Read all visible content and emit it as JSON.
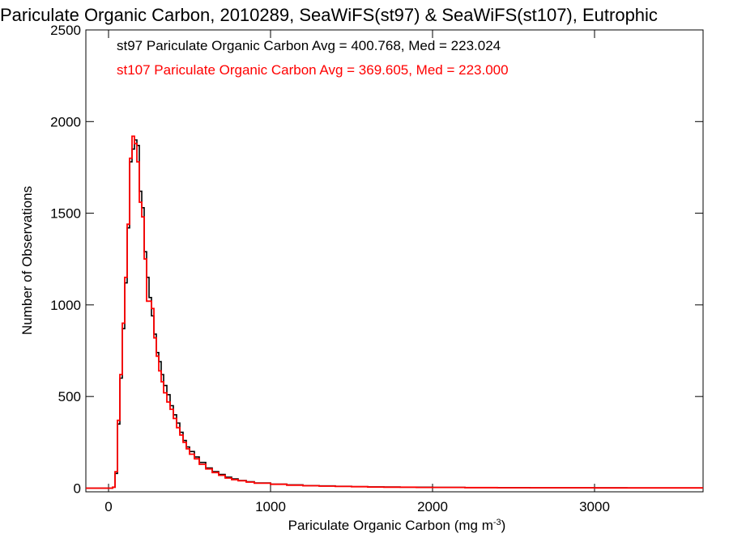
{
  "chart_data": {
    "type": "line",
    "title": "Pariculate Organic Carbon, 2010289, SeaWiFS(st97) & SeaWiFS(st107), Eutrophic",
    "xlabel": "Pariculate Organic Carbon (mg m",
    "xlabel_sup": "-3",
    "xlabel_end": ")",
    "ylabel": "Number of Observations",
    "xlim": [
      -140,
      3670
    ],
    "ylim": [
      -20,
      2500
    ],
    "x_ticks": [
      0,
      1000,
      2000,
      3000
    ],
    "y_ticks": [
      0,
      500,
      1000,
      1500,
      2000,
      2500
    ],
    "x_tick_labels": [
      "0",
      "1000",
      "2000",
      "3000"
    ],
    "y_tick_labels": [
      "0",
      "500",
      "1000",
      "1500",
      "2000",
      "2500"
    ],
    "annotations": [
      {
        "text": "st97 Pariculate Organic Carbon Avg = 400.768, Med = 223.024",
        "color": "#000000"
      },
      {
        "text": "st107 Pariculate Organic Carbon Avg = 369.605, Med = 223.000",
        "color": "#ff0000"
      }
    ],
    "series": [
      {
        "color": "#000000",
        "x": [
          -140,
          0,
          25,
          40,
          55,
          70,
          85,
          100,
          115,
          130,
          145,
          160,
          175,
          190,
          205,
          220,
          235,
          250,
          265,
          280,
          295,
          310,
          325,
          340,
          360,
          380,
          400,
          420,
          440,
          460,
          480,
          500,
          530,
          560,
          600,
          640,
          680,
          720,
          760,
          800,
          850,
          900,
          1000,
          1100,
          1200,
          1300,
          1400,
          1500,
          1600,
          1700,
          1800,
          1900,
          2000,
          2200,
          2400,
          2600,
          2800,
          3000,
          3200,
          3400,
          3670
        ],
        "y": [
          0,
          0,
          5,
          80,
          350,
          600,
          870,
          1120,
          1420,
          1780,
          1850,
          1900,
          1870,
          1620,
          1530,
          1290,
          1150,
          1040,
          940,
          840,
          740,
          690,
          620,
          560,
          510,
          450,
          400,
          355,
          305,
          260,
          225,
          200,
          170,
          140,
          110,
          90,
          75,
          60,
          50,
          42,
          35,
          28,
          22,
          18,
          14,
          12,
          10,
          8,
          7,
          6,
          5,
          5,
          4,
          3,
          3,
          2,
          2,
          2,
          1,
          1,
          1
        ]
      },
      {
        "color": "#ff0000",
        "x": [
          -140,
          0,
          25,
          40,
          55,
          70,
          85,
          100,
          115,
          130,
          145,
          160,
          175,
          190,
          205,
          220,
          235,
          250,
          265,
          280,
          295,
          310,
          325,
          340,
          360,
          380,
          400,
          420,
          440,
          460,
          480,
          500,
          530,
          560,
          600,
          640,
          680,
          720,
          760,
          800,
          850,
          900,
          1000,
          1100,
          1200,
          1300,
          1400,
          1500,
          1600,
          1700,
          1800,
          1900,
          2000,
          2200,
          2400,
          2600,
          2800,
          3000,
          3200,
          3400,
          3670
        ],
        "y": [
          0,
          0,
          5,
          90,
          370,
          620,
          900,
          1150,
          1440,
          1800,
          1920,
          1880,
          1780,
          1560,
          1480,
          1250,
          1020,
          1020,
          980,
          820,
          720,
          640,
          580,
          520,
          470,
          430,
          380,
          330,
          290,
          250,
          215,
          185,
          160,
          130,
          105,
          85,
          70,
          55,
          46,
          40,
          33,
          27,
          21,
          16,
          13,
          11,
          9,
          8,
          6,
          5,
          5,
          4,
          4,
          3,
          2,
          2,
          2,
          1,
          1,
          1,
          1
        ]
      }
    ]
  }
}
